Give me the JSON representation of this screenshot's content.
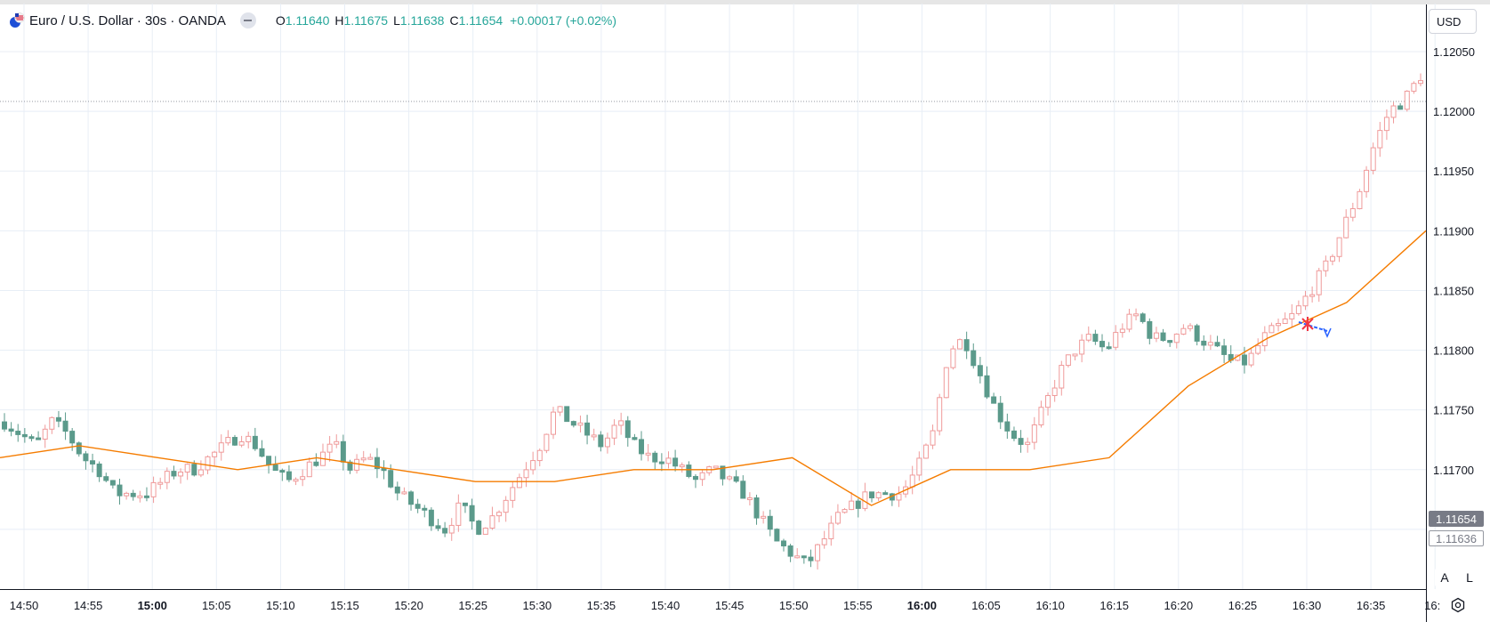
{
  "legend": {
    "title": "Euro / U.S. Dollar · 30s · OANDA",
    "open_key": "O",
    "open": "1.11640",
    "high_key": "H",
    "high": "1.11675",
    "low_key": "L",
    "low": "1.11638",
    "close_key": "C",
    "close": "1.11654",
    "change": "+0.00017 (+0.02%)",
    "icon": "eur-usd-flag-icon"
  },
  "price_scale": {
    "currency": "USD",
    "ticks": [
      "1.12050",
      "1.12000",
      "1.11950",
      "1.11900",
      "1.11850",
      "1.11800",
      "1.11750",
      "1.11700"
    ],
    "last_price": "1.11654",
    "prev_price": "1.11636",
    "auto_label": "A",
    "log_label": "L"
  },
  "time_scale": {
    "ticks": [
      "14:50",
      "14:55",
      "15:00",
      "15:05",
      "15:10",
      "15:15",
      "15:20",
      "15:25",
      "15:30",
      "15:35",
      "15:40",
      "15:45",
      "15:50",
      "15:55",
      "16:00",
      "16:05",
      "16:10",
      "16:15",
      "16:20",
      "16:25",
      "16:30",
      "16:35",
      "16:"
    ],
    "bold_ticks": [
      "15:00",
      "16:00"
    ]
  },
  "colors": {
    "up": "#ef9a9a",
    "down": "#5b9a8b",
    "ma_line": "#f57c00",
    "grid": "#e8eef6",
    "ohlc_value": "#26a69a",
    "marker_red": "#f23645",
    "marker_blue": "#2962ff"
  },
  "chart_data": {
    "type": "candlestick",
    "bar_interval": "30s",
    "ylim": [
      1.116,
      1.1207
    ],
    "prices_approx": [
      1.1174,
      1.1173,
      1.1172,
      1.1174,
      1.1173,
      1.1171,
      1.117,
      1.1168,
      1.1168,
      1.1168,
      1.1169,
      1.117,
      1.117,
      1.1171,
      1.1172,
      1.1173,
      1.1172,
      1.117,
      1.1169,
      1.117,
      1.1171,
      1.1172,
      1.117,
      1.1171,
      1.117,
      1.1168,
      1.1167,
      1.1166,
      1.1165,
      1.1167,
      1.1165,
      1.1166,
      1.1168,
      1.117,
      1.1172,
      1.1175,
      1.1174,
      1.1173,
      1.1172,
      1.1174,
      1.1172,
      1.1171,
      1.1171,
      1.117,
      1.1169,
      1.117,
      1.1169,
      1.1168,
      1.1166,
      1.1164,
      1.1163,
      1.1162,
      1.1164,
      1.1166,
      1.1167,
      1.1168,
      1.1168,
      1.1168,
      1.117,
      1.1173,
      1.118,
      1.1181,
      1.1178,
      1.1175,
      1.1173,
      1.1172,
      1.1175,
      1.1178,
      1.118,
      1.1181,
      1.118,
      1.1182,
      1.1183,
      1.1181,
      1.1181,
      1.1182,
      1.1181,
      1.118,
      1.1179,
      1.1179,
      1.1181,
      1.1182,
      1.1183,
      1.1185,
      1.1187,
      1.119,
      1.1193,
      1.1197,
      1.12,
      1.1201,
      1.1203
    ],
    "moving_average_approx": [
      1.1171,
      1.1172,
      1.1171,
      1.117,
      1.1171,
      1.117,
      1.1169,
      1.1169,
      1.117,
      1.117,
      1.1171,
      1.1167,
      1.117,
      1.117,
      1.1171,
      1.1177,
      1.1181,
      1.1184,
      1.119
    ]
  }
}
